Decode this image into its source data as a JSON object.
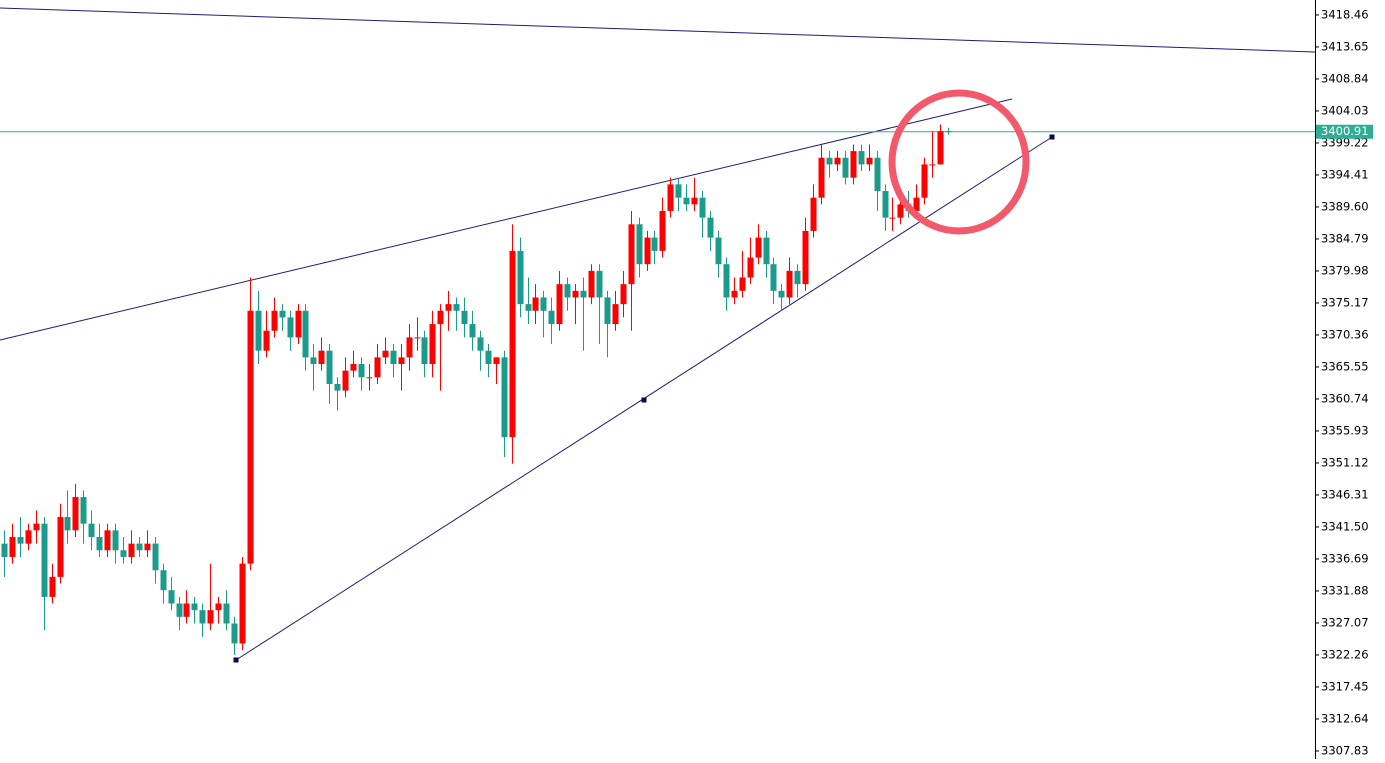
{
  "chart_data": {
    "type": "candlestick",
    "up_color": "#ff0000",
    "down_color": "#1a9b8c",
    "ylim": [
      3306.63,
      3420.71
    ],
    "yticks": [
      3418.46,
      3413.65,
      3408.84,
      3404.03,
      3399.22,
      3394.41,
      {
        "value": 3389.6,
        "label": "3389.60"
      },
      3384.79,
      3379.98,
      3375.17,
      3370.36,
      3365.55,
      3360.74,
      3355.93,
      3351.12,
      3346.31,
      {
        "value": 3341.5,
        "label": "3341.50"
      },
      3336.69,
      3331.88,
      3327.07,
      3322.26,
      3317.45,
      3312.64,
      3307.83
    ],
    "current_price": 3400.91,
    "current_price_color": "#2fae96",
    "candles": [
      [
        3339,
        3341,
        3334,
        3337
      ],
      [
        3337,
        3342,
        3336,
        3340
      ],
      [
        3340,
        3343,
        3337,
        3339
      ],
      [
        3339,
        3342,
        3338,
        3341
      ],
      [
        3341,
        3344,
        3339,
        3342
      ],
      [
        3342,
        3343,
        3326,
        3331
      ],
      [
        3331,
        3336,
        3330,
        3334
      ],
      [
        3334,
        3345,
        3333,
        3343
      ],
      [
        3343,
        3347,
        3339,
        3341
      ],
      [
        3341,
        3348,
        3340,
        3346
      ],
      [
        3346,
        3347,
        3339,
        3342
      ],
      [
        3342,
        3344,
        3338,
        3340
      ],
      [
        3340,
        3342,
        3337,
        3338
      ],
      [
        3338,
        3342,
        3337,
        3341
      ],
      [
        3341,
        3342,
        3336,
        3338
      ],
      [
        3338,
        3340,
        3336,
        3337
      ],
      [
        3337,
        3341,
        3336,
        3339
      ],
      [
        3339,
        3340,
        3337,
        3338
      ],
      [
        3338,
        3341,
        3337,
        3339
      ],
      [
        3339,
        3340,
        3333,
        3335
      ],
      [
        3335,
        3336,
        3330,
        3332
      ],
      [
        3332,
        3334,
        3329,
        3330
      ],
      [
        3330,
        3331,
        3326,
        3328
      ],
      [
        3328,
        3332,
        3327,
        3330
      ],
      [
        3330,
        3331,
        3327,
        3329
      ],
      [
        3329,
        3330,
        3325,
        3327
      ],
      [
        3327,
        3336,
        3326,
        3329
      ],
      [
        3329,
        3331,
        3327,
        3330
      ],
      [
        3330,
        3332,
        3326,
        3327
      ],
      [
        3327,
        3328,
        3322.3,
        3324
      ],
      [
        3324,
        3337,
        3323,
        3336
      ],
      [
        3336,
        3379,
        3335,
        3374
      ],
      [
        3374,
        3377,
        3366,
        3368
      ],
      [
        3368,
        3374,
        3367,
        3371
      ],
      [
        3371,
        3376,
        3370,
        3374
      ],
      [
        3374,
        3375,
        3371,
        3373
      ],
      [
        3373,
        3374,
        3368,
        3370
      ],
      [
        3370,
        3375,
        3369,
        3374
      ],
      [
        3374,
        3375,
        3365,
        3367
      ],
      [
        3367,
        3369,
        3362,
        3366
      ],
      [
        3366,
        3370,
        3365,
        3368
      ],
      [
        3368,
        3369,
        3360,
        3363
      ],
      [
        3363,
        3364,
        3359,
        3362
      ],
      [
        3362,
        3367,
        3361,
        3365
      ],
      [
        3365,
        3368,
        3364,
        3366
      ],
      [
        3366,
        3367,
        3362,
        3364
      ],
      [
        3364,
        3366,
        3362,
        3364
      ],
      [
        3364,
        3369,
        3363,
        3367
      ],
      [
        3367,
        3370,
        3366,
        3368
      ],
      [
        3368,
        3369,
        3364,
        3366
      ],
      [
        3366,
        3369,
        3362,
        3367
      ],
      [
        3367,
        3372,
        3365,
        3370
      ],
      [
        3370,
        3373,
        3368,
        3370
      ],
      [
        3370,
        3371,
        3364,
        3366
      ],
      [
        3366,
        3374,
        3364,
        3372
      ],
      [
        3372,
        3375,
        3362,
        3374
      ],
      [
        3374,
        3377,
        3371,
        3375
      ],
      [
        3375,
        3376,
        3371,
        3374
      ],
      [
        3374,
        3376,
        3370,
        3372
      ],
      [
        3372,
        3374,
        3368,
        3370
      ],
      [
        3370,
        3371,
        3365,
        3368
      ],
      [
        3368,
        3369,
        3364,
        3366
      ],
      [
        3366,
        3367,
        3363,
        3367
      ],
      [
        3367,
        3368,
        3352,
        3355
      ],
      [
        3355,
        3387,
        3351,
        3383
      ],
      [
        3383,
        3385,
        3373,
        3375
      ],
      [
        3375,
        3379,
        3372,
        3374
      ],
      [
        3374,
        3378,
        3372,
        3376
      ],
      [
        3376,
        3377,
        3370,
        3374
      ],
      [
        3374,
        3376,
        3369,
        3372
      ],
      [
        3372,
        3380,
        3371,
        3378
      ],
      [
        3378,
        3379,
        3374,
        3376
      ],
      [
        3376,
        3378,
        3372,
        3377
      ],
      [
        3377,
        3379,
        3368,
        3376
      ],
      [
        3376,
        3381,
        3375,
        3380
      ],
      [
        3380,
        3381,
        3369,
        3376
      ],
      [
        3376,
        3377,
        3367,
        3372
      ],
      [
        3372,
        3377,
        3371,
        3375
      ],
      [
        3375,
        3380,
        3373,
        3378
      ],
      [
        3378,
        3389,
        3371,
        3387
      ],
      [
        3387,
        3388,
        3379,
        3381
      ],
      [
        3381,
        3386,
        3380,
        3385
      ],
      [
        3385,
        3386,
        3381,
        3383
      ],
      [
        3383,
        3391,
        3382,
        3389
      ],
      [
        3389,
        3394,
        3388,
        3393
      ],
      [
        3393,
        3394,
        3389,
        3391
      ],
      [
        3391,
        3393,
        3389,
        3390
      ],
      [
        3390,
        3394,
        3389,
        3391
      ],
      [
        3391,
        3392,
        3385,
        3388
      ],
      [
        3388,
        3389,
        3383,
        3385
      ],
      [
        3385,
        3386,
        3379,
        3381
      ],
      [
        3381,
        3382,
        3374,
        3376
      ],
      [
        3376,
        3379,
        3375,
        3377
      ],
      [
        3377,
        3383,
        3376,
        3379
      ],
      [
        3379,
        3385,
        3378,
        3382
      ],
      [
        3382,
        3387,
        3381,
        3385
      ],
      [
        3385,
        3386,
        3379,
        3381
      ],
      [
        3381,
        3382,
        3375,
        3377
      ],
      [
        3377,
        3378,
        3374,
        3376
      ],
      [
        3376,
        3382,
        3375,
        3380
      ],
      [
        3380,
        3381,
        3376,
        3378
      ],
      [
        3378,
        3388,
        3377,
        3386
      ],
      [
        3386,
        3393,
        3385,
        3391
      ],
      [
        3391,
        3399,
        3390,
        3397
      ],
      [
        3397,
        3398,
        3394,
        3396
      ],
      [
        3396,
        3398,
        3395,
        3397
      ],
      [
        3397,
        3398,
        3393,
        3394
      ],
      [
        3394,
        3399,
        3393,
        3398
      ],
      [
        3398,
        3399,
        3395,
        3396
      ],
      [
        3396,
        3399,
        3395,
        3397
      ],
      [
        3397,
        3398,
        3389,
        3392
      ],
      [
        3392,
        3393,
        3386,
        3388
      ],
      [
        3388,
        3391,
        3386,
        3388
      ],
      [
        3388,
        3391,
        3387,
        3390
      ],
      [
        3390,
        3392,
        3388,
        3389
      ],
      [
        3389,
        3393,
        3388,
        3391
      ],
      [
        3391,
        3397,
        3390,
        3396
      ],
      [
        3396,
        3401,
        3394,
        3396
      ],
      [
        3396,
        3402,
        3396,
        3401
      ],
      [
        3401,
        3401.5,
        3400.5,
        3400.91
      ]
    ]
  }
}
